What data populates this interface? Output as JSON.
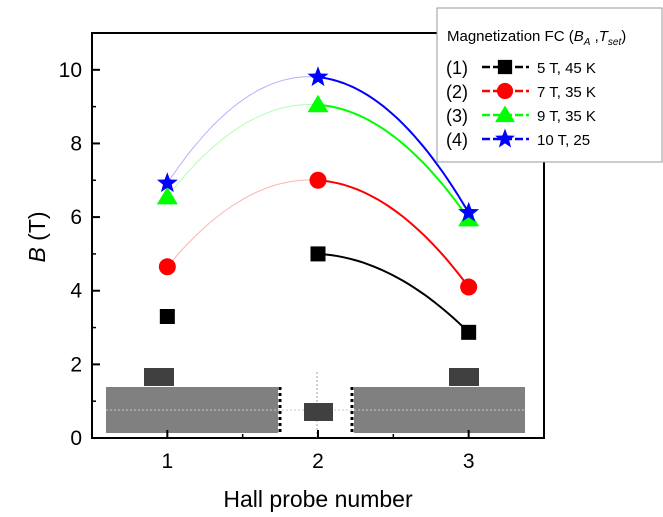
{
  "chart_data": {
    "type": "scatter",
    "xlabel": "Hall probe number",
    "ylabel_italic": "B",
    "ylabel_unit": " (T)",
    "xlim": [
      0.5,
      3.5
    ],
    "ylim": [
      0,
      11
    ],
    "x_ticks": [
      1,
      2,
      3
    ],
    "y_ticks": [
      0,
      2,
      4,
      6,
      8,
      10
    ],
    "grid": false,
    "legend": {
      "placement": "top-right",
      "title": "Magnetization FC (B_A , T_set)",
      "entries": [
        {
          "index": "(1)",
          "label": "5 T, 45 K"
        },
        {
          "index": "(2)",
          "label": "7 T, 35 K"
        },
        {
          "index": "(3)",
          "label": "9 T, 35 K"
        },
        {
          "index": "(4)",
          "label": "10 T, 25"
        }
      ]
    },
    "series": [
      {
        "label": "5 T, 45 K",
        "marker": "square",
        "color": "#000000",
        "x": [
          1,
          2,
          3
        ],
        "values": [
          3.3,
          5.0,
          2.87
        ]
      },
      {
        "label": "7 T, 35 K",
        "marker": "circle",
        "color": "#ff0000",
        "x": [
          1,
          2,
          3
        ],
        "values": [
          4.65,
          7.0,
          4.1
        ]
      },
      {
        "label": "9 T, 35 K",
        "marker": "triangle",
        "color": "#00ff00",
        "x": [
          1,
          2,
          3
        ],
        "values": [
          6.55,
          9.05,
          5.95
        ]
      },
      {
        "label": "10 T, 25",
        "marker": "star",
        "color": "#0000ff",
        "x": [
          1,
          2,
          3
        ],
        "values": [
          6.92,
          9.8,
          6.12
        ]
      }
    ]
  }
}
